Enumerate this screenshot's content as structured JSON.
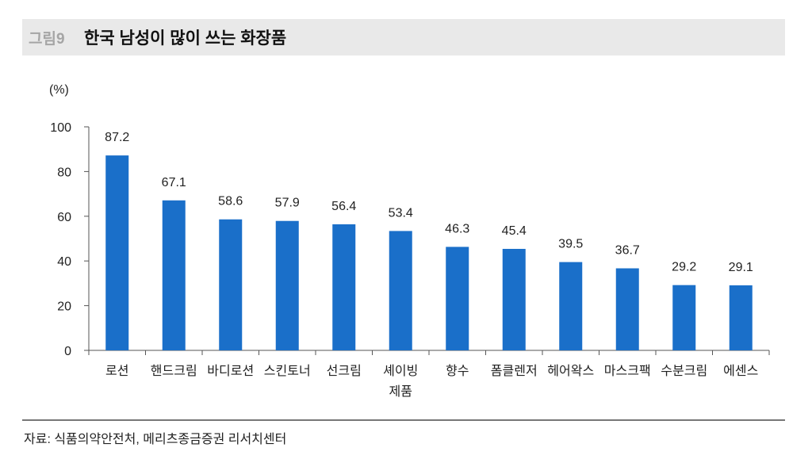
{
  "header": {
    "figure_label": "그림9",
    "title": "한국 남성이 많이 쓰는 화장품"
  },
  "source": "자료: 식품의약안전처, 메리츠종금증권 리서치센터",
  "chart_data": {
    "type": "bar",
    "title": "한국 남성이 많이 쓰는 화장품",
    "ylabel": "(%)",
    "xlabel": "",
    "ylim": [
      0,
      100
    ],
    "yticks": [
      0,
      20,
      40,
      60,
      80,
      100
    ],
    "categories": [
      "로션",
      "핸드크림",
      "바디로션",
      "스킨토너",
      "선크림",
      "셰이빙\n제품",
      "향수",
      "폼클렌저",
      "헤어왁스",
      "마스크팩",
      "수분크림",
      "에센스"
    ],
    "values": [
      87.2,
      67.1,
      58.6,
      57.9,
      56.4,
      53.4,
      46.3,
      45.4,
      39.5,
      36.7,
      29.2,
      29.1
    ],
    "data_labels": [
      "87.2",
      "67.1",
      "58.6",
      "57.9",
      "56.4",
      "53.4",
      "46.3",
      "45.4",
      "39.5",
      "36.7",
      "29.2",
      "29.1"
    ],
    "bar_color": "#1a6fc9",
    "grid": false,
    "legend": "none"
  }
}
